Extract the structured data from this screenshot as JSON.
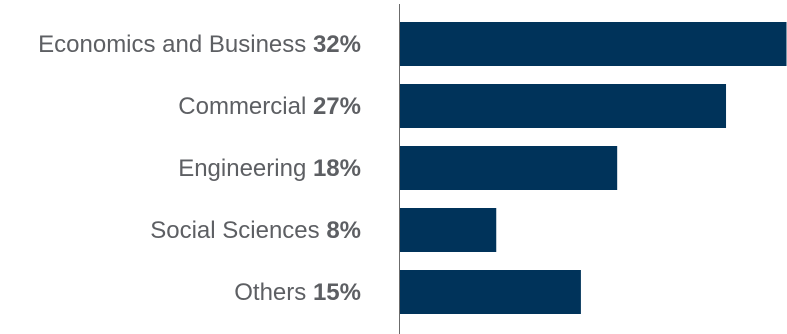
{
  "chart_data": {
    "type": "bar",
    "orientation": "horizontal",
    "categories": [
      "Economics and Business",
      "Commercial",
      "Engineering",
      "Social Sciences",
      "Others"
    ],
    "values": [
      32,
      27,
      18,
      8,
      15
    ],
    "value_labels": [
      "32%",
      "27%",
      "18%",
      "8%",
      "15%"
    ],
    "unit": "%",
    "xlim": [
      0,
      32
    ],
    "grid": false,
    "legend": "none",
    "bar_color": "#00335a",
    "axis_color": "#6b6b6b",
    "label_color": "#5d5f63"
  }
}
